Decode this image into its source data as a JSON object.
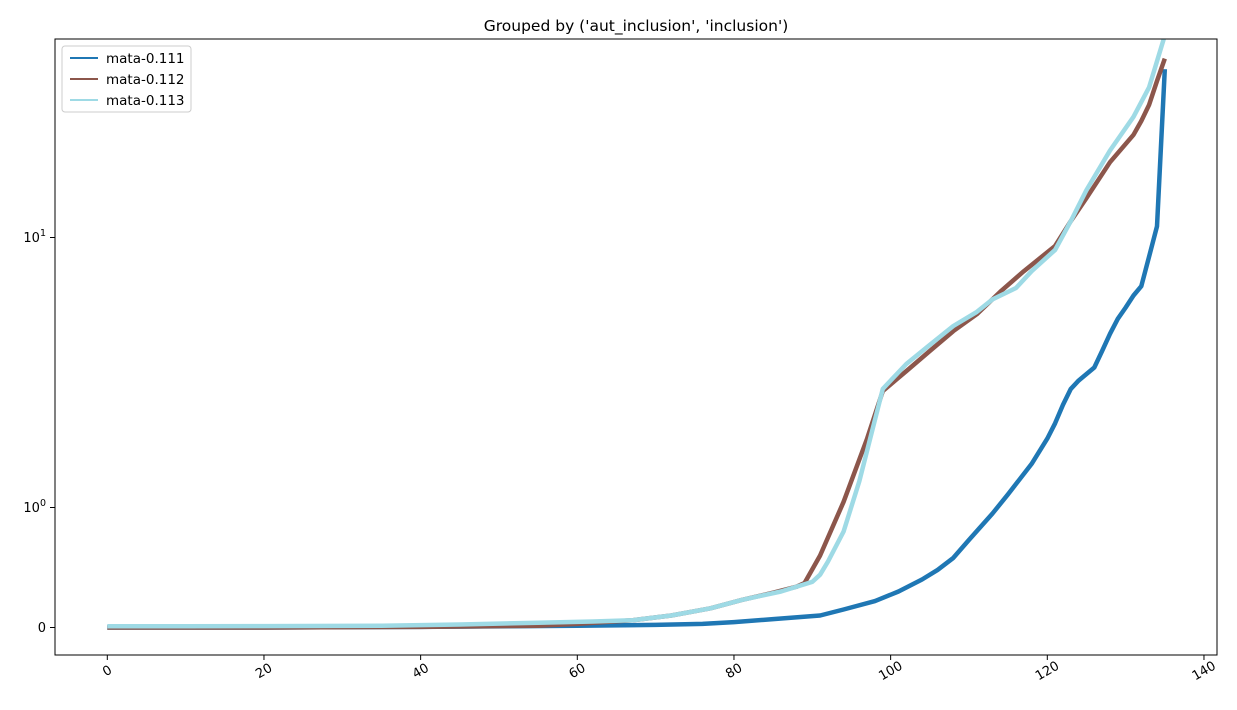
{
  "chart_data": {
    "type": "line",
    "title": "Grouped by ('aut_inclusion', 'inclusion')",
    "xlabel": "",
    "ylabel": "",
    "xlim": [
      -7,
      142
    ],
    "xticks": [
      0,
      20,
      40,
      60,
      80,
      100,
      120,
      140
    ],
    "xtick_labels": [
      "0",
      "20",
      "40",
      "60",
      "80",
      "100",
      "120",
      "140"
    ],
    "y_scale": "symlog",
    "yticks": [
      {
        "value": 0,
        "label": "0"
      },
      {
        "value": 1,
        "label": "10^0"
      },
      {
        "value": 10,
        "label": "10^1"
      }
    ],
    "grid": false,
    "legend_position": "top-left",
    "series": [
      {
        "name": "mata-0.111",
        "color": "#1f77b4",
        "points": [
          [
            0,
            0.0
          ],
          [
            20,
            0.0
          ],
          [
            40,
            0.005
          ],
          [
            60,
            0.015
          ],
          [
            70,
            0.022
          ],
          [
            76,
            0.03
          ],
          [
            80,
            0.045
          ],
          [
            85,
            0.07
          ],
          [
            91,
            0.1
          ],
          [
            94,
            0.15
          ],
          [
            98,
            0.22
          ],
          [
            101,
            0.3
          ],
          [
            104,
            0.4
          ],
          [
            106,
            0.48
          ],
          [
            108,
            0.58
          ],
          [
            110,
            0.73
          ],
          [
            113,
            0.95
          ],
          [
            115,
            1.12
          ],
          [
            118,
            1.45
          ],
          [
            120,
            1.8
          ],
          [
            121,
            2.05
          ],
          [
            122,
            2.4
          ],
          [
            123,
            2.75
          ],
          [
            124,
            2.95
          ],
          [
            126,
            3.3
          ],
          [
            127,
            3.8
          ],
          [
            128,
            4.4
          ],
          [
            129,
            5.0
          ],
          [
            130,
            5.5
          ],
          [
            131,
            6.1
          ],
          [
            132,
            6.6
          ],
          [
            133,
            8.5
          ],
          [
            134,
            11.0
          ],
          [
            135,
            42.0
          ]
        ]
      },
      {
        "name": "mata-0.112",
        "color": "#8c564b",
        "points": [
          [
            0,
            0.0
          ],
          [
            20,
            0.0
          ],
          [
            40,
            0.005
          ],
          [
            55,
            0.015
          ],
          [
            60,
            0.03
          ],
          [
            67,
            0.06
          ],
          [
            72,
            0.1
          ],
          [
            77,
            0.16
          ],
          [
            81,
            0.23
          ],
          [
            85,
            0.29
          ],
          [
            88,
            0.34
          ],
          [
            89,
            0.37
          ],
          [
            91,
            0.6
          ],
          [
            94,
            1.05
          ],
          [
            97,
            1.8
          ],
          [
            99,
            2.7
          ],
          [
            102,
            3.2
          ],
          [
            105,
            3.8
          ],
          [
            108,
            4.5
          ],
          [
            111,
            5.2
          ],
          [
            114,
            6.3
          ],
          [
            117,
            7.5
          ],
          [
            121,
            9.3
          ],
          [
            123,
            11.5
          ],
          [
            125,
            14.0
          ],
          [
            128,
            19.0
          ],
          [
            131,
            24.0
          ],
          [
            132,
            27.0
          ],
          [
            133,
            31.0
          ],
          [
            134,
            38.0
          ],
          [
            135,
            46.0
          ]
        ]
      },
      {
        "name": "mata-0.113",
        "color": "#9edae5",
        "points": [
          [
            0,
            0.01
          ],
          [
            10,
            0.01
          ],
          [
            20,
            0.012
          ],
          [
            35,
            0.015
          ],
          [
            45,
            0.025
          ],
          [
            55,
            0.04
          ],
          [
            62,
            0.05
          ],
          [
            67,
            0.06
          ],
          [
            72,
            0.1
          ],
          [
            77,
            0.16
          ],
          [
            81,
            0.23
          ],
          [
            86,
            0.3
          ],
          [
            90,
            0.38
          ],
          [
            91,
            0.44
          ],
          [
            92,
            0.55
          ],
          [
            94,
            0.8
          ],
          [
            96,
            1.25
          ],
          [
            99,
            2.75
          ],
          [
            102,
            3.4
          ],
          [
            105,
            4.0
          ],
          [
            108,
            4.7
          ],
          [
            111,
            5.3
          ],
          [
            113,
            5.9
          ],
          [
            116,
            6.5
          ],
          [
            118,
            7.5
          ],
          [
            121,
            9.0
          ],
          [
            123,
            11.5
          ],
          [
            125,
            15.0
          ],
          [
            128,
            21.0
          ],
          [
            131,
            28.0
          ],
          [
            133,
            36.0
          ],
          [
            135,
            56.0
          ]
        ]
      }
    ]
  }
}
